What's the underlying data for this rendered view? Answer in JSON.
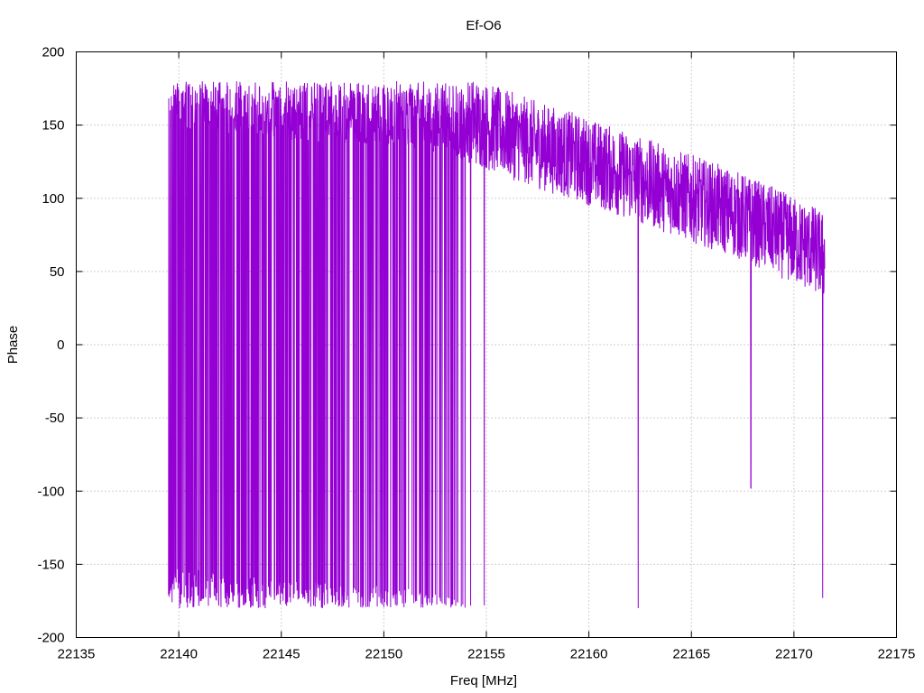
{
  "chart_data": {
    "type": "line",
    "title": "Ef-O6",
    "xlabel": "Freq [MHz]",
    "ylabel": "Phase",
    "xlim": [
      22135,
      22175
    ],
    "ylim": [
      -200,
      200
    ],
    "xticks": [
      22135,
      22140,
      22145,
      22150,
      22155,
      22160,
      22165,
      22170,
      22175
    ],
    "yticks": [
      -200,
      -150,
      -100,
      -50,
      0,
      50,
      100,
      150,
      200
    ],
    "xtick_labels": [
      "22135",
      "22140",
      "22145",
      "22150",
      "22155",
      "22160",
      "22165",
      "22170",
      "22175"
    ],
    "ytick_labels": [
      "-200",
      "-150",
      "-100",
      "-50",
      "0",
      "50",
      "100",
      "150",
      "200"
    ],
    "grid": true,
    "legend": "none",
    "series": [
      {
        "color": "#9400d3",
        "x_range": [
          22139.5,
          22171.5
        ],
        "x_samples": [
          22139.5,
          22140,
          22141,
          22142,
          22143,
          22144,
          22145,
          22146,
          22147,
          22148,
          22149,
          22150,
          22151,
          22152,
          22153,
          22154,
          22155,
          22156,
          22157,
          22158,
          22159,
          22160,
          22161,
          22162,
          22163,
          22164,
          22165,
          22166,
          22167,
          22168,
          22169,
          22170,
          22171,
          22171.5
        ],
        "y_trend": [
          180,
          178,
          176,
          174,
          172,
          171,
          170,
          169,
          168,
          168,
          167,
          166,
          165,
          163,
          160,
          155,
          149,
          144,
          139,
          134,
          130,
          125,
          120,
          115,
          110,
          105,
          100,
          95,
          90,
          84,
          78,
          71,
          65,
          60
        ],
        "wrap_at": [
          -180,
          180
        ],
        "spikes": [
          {
            "x": 22154.9,
            "y": -178
          },
          {
            "x": 22162.4,
            "y": -180
          },
          {
            "x": 22167.9,
            "y": -98
          },
          {
            "x": 22171.4,
            "y": -173
          }
        ]
      }
    ]
  }
}
